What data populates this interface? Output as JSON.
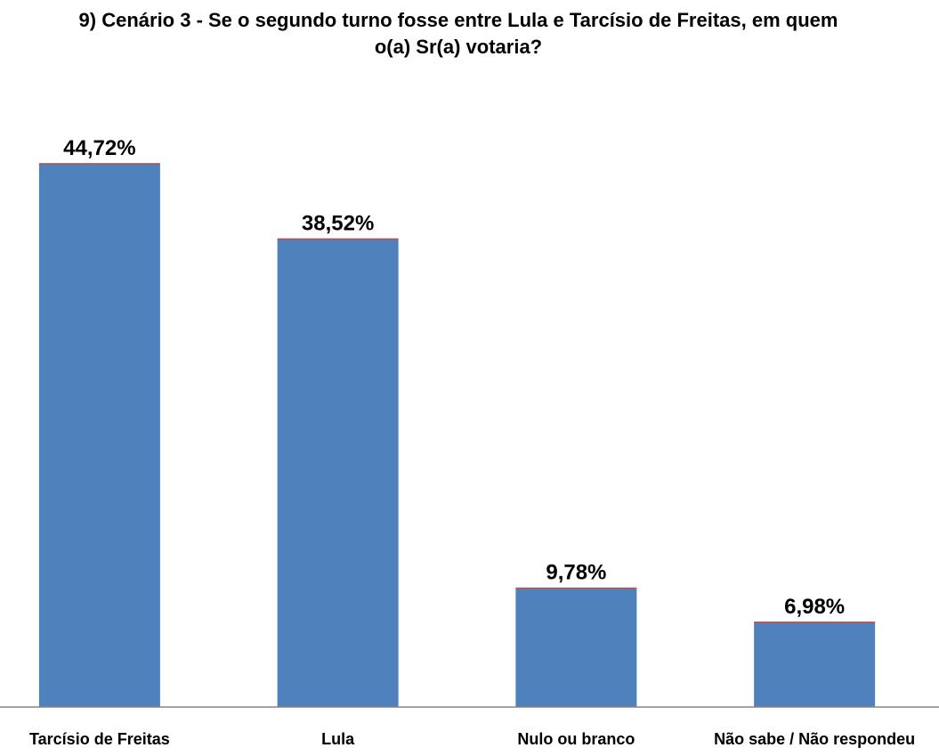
{
  "chart_data": {
    "type": "bar",
    "title": "9) Cenário 3 - Se o segundo turno fosse entre Lula e Tarcísio de Freitas, em quem\no(a) Sr(a) votaria?",
    "categories": [
      "Tarcísio de Freitas",
      "Lula",
      "Nulo ou branco",
      "Não sabe / Não respondeu"
    ],
    "values": [
      44.72,
      38.52,
      9.78,
      6.98
    ],
    "data_labels": [
      "44,72%",
      "38,52%",
      "9,78%",
      "6,98%"
    ],
    "xlabel": "",
    "ylabel": "",
    "ylim": [
      0,
      45
    ],
    "grid": false,
    "legend": "none",
    "bar_color": "#4F81BD",
    "bar_top_color": "#C0504D",
    "axis_color": "#868686"
  }
}
